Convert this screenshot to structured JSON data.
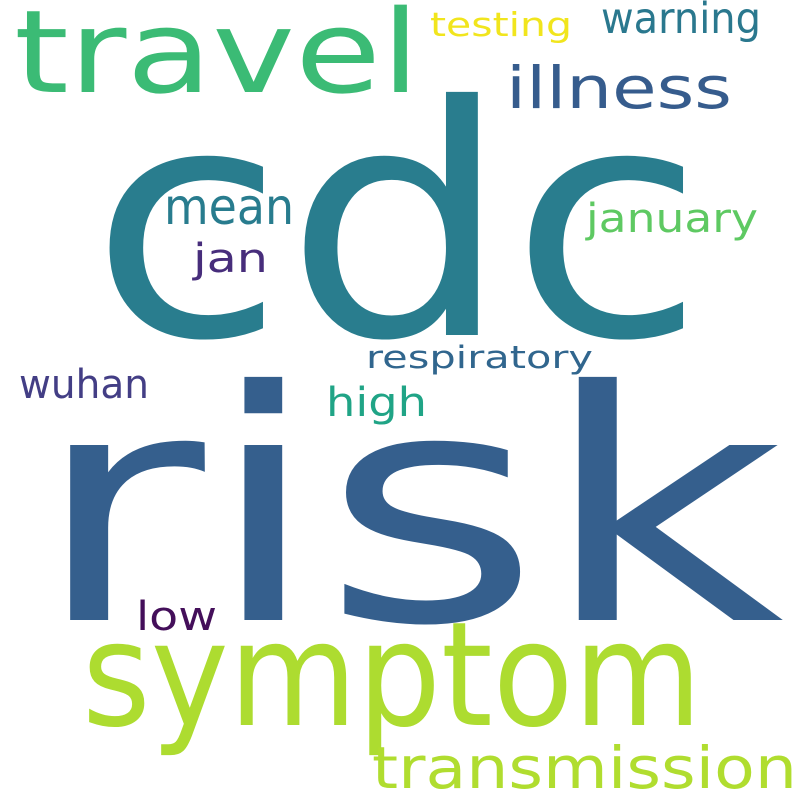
{
  "words": [
    {
      "text": "cdc",
      "color": "#297d8e"
    },
    {
      "text": "risk",
      "color": "#355f8d"
    },
    {
      "text": "symptom",
      "color": "#addc30"
    },
    {
      "text": "travel",
      "color": "#3bbb75"
    },
    {
      "text": "transmission",
      "color": "#b0dd2f"
    },
    {
      "text": "illness",
      "color": "#365c8d"
    },
    {
      "text": "warning",
      "color": "#2a788e"
    },
    {
      "text": "testing",
      "color": "#f1e51d"
    },
    {
      "text": "mean",
      "color": "#287c8e"
    },
    {
      "text": "january",
      "color": "#5ec962"
    },
    {
      "text": "jan",
      "color": "#472d7b"
    },
    {
      "text": "respiratory",
      "color": "#31668e"
    },
    {
      "text": "wuhan",
      "color": "#433e85"
    },
    {
      "text": "high",
      "color": "#20a486"
    },
    {
      "text": "low",
      "color": "#440f5a"
    }
  ]
}
